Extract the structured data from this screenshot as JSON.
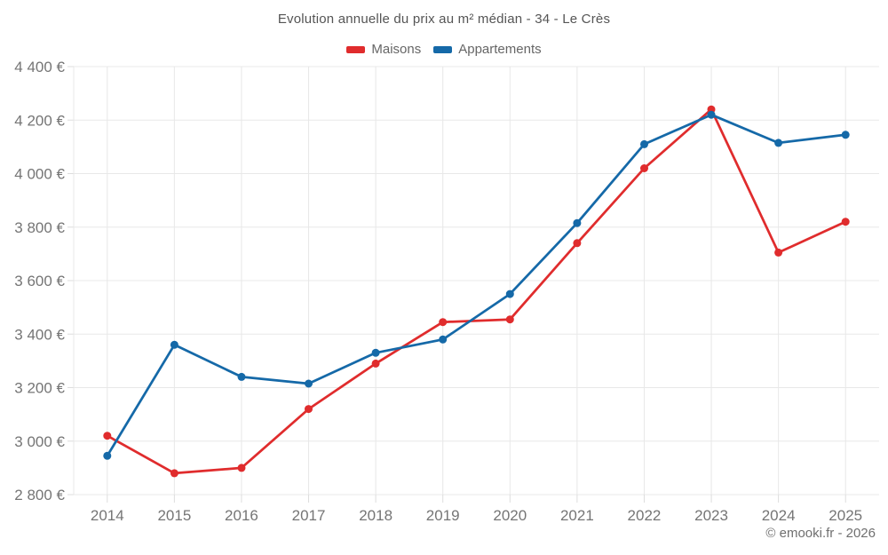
{
  "chart_data": {
    "type": "line",
    "title": "Evolution annuelle du prix au m² médian - 34 - Le Crès",
    "categories": [
      "2014",
      "2015",
      "2016",
      "2017",
      "2018",
      "2019",
      "2020",
      "2021",
      "2022",
      "2023",
      "2024",
      "2025"
    ],
    "series": [
      {
        "name": "Maisons",
        "color": "#e02c2d",
        "values": [
          3020,
          2880,
          2900,
          3120,
          3290,
          3445,
          3455,
          3740,
          4020,
          4240,
          3705,
          3820
        ]
      },
      {
        "name": "Appartements",
        "color": "#1569a8",
        "values": [
          2945,
          3360,
          3240,
          3215,
          3330,
          3380,
          3550,
          3815,
          4110,
          4220,
          4115,
          4145
        ]
      }
    ],
    "ylim": [
      2800,
      4400
    ],
    "y_tick_step": 200,
    "y_tick_values": [
      2800,
      3000,
      3200,
      3400,
      3600,
      3800,
      4000,
      4200,
      4400
    ],
    "y_tick_labels": [
      "2 800 €",
      "3 000 €",
      "3 200 €",
      "3 400 €",
      "3 600 €",
      "3 800 €",
      "4 000 €",
      "4 200 €",
      "4 400 €"
    ],
    "xlabel": "",
    "ylabel": "",
    "grid": true,
    "legend_position": "top"
  },
  "footer": {
    "copyright": "© emooki.fr - 2026"
  },
  "colors": {
    "grid": "#e8e8e8",
    "tick": "#dddddd",
    "axis_text": "#757575",
    "title_text": "#555555",
    "legend_text": "#666666",
    "background": "#ffffff"
  }
}
